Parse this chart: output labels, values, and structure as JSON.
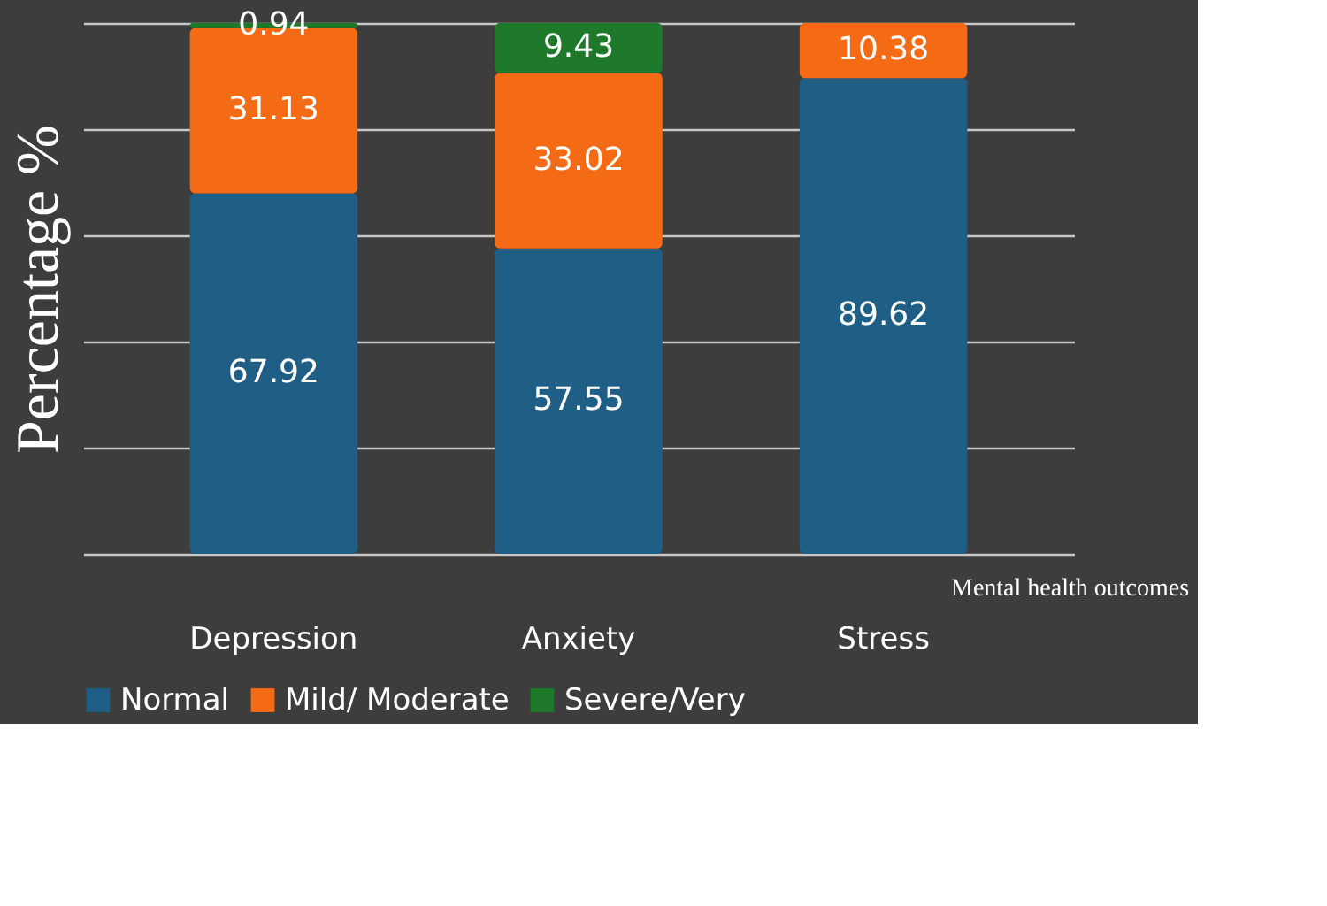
{
  "chart_data": {
    "type": "bar",
    "stacked": true,
    "data_labels": true,
    "xlabel": "Mental health outcomes",
    "ylabel": "Percentage %",
    "categories": [
      "Depression",
      "Anxiety",
      "Stress"
    ],
    "series": [
      {
        "name": "Normal",
        "color": "#1f5f85",
        "values": [
          67.92,
          57.55,
          89.62
        ]
      },
      {
        "name": "Mild/ Moderate",
        "color": "#f56a14",
        "values": [
          31.13,
          33.02,
          10.38
        ]
      },
      {
        "name": "Severe/Very",
        "color": "#1e7a2a",
        "values": [
          0.94,
          9.43,
          null
        ]
      }
    ],
    "ylim": [
      0,
      100
    ],
    "yticks": [
      {
        "value": 0,
        "label": null
      },
      {
        "value": 20,
        "label": null
      },
      {
        "value": 40,
        "label": null
      },
      {
        "value": 60,
        "label": null
      },
      {
        "value": 80,
        "label": null
      },
      {
        "value": 100,
        "label": null
      }
    ],
    "tick_labels": "x",
    "grid": "y",
    "legend": "bottom"
  }
}
